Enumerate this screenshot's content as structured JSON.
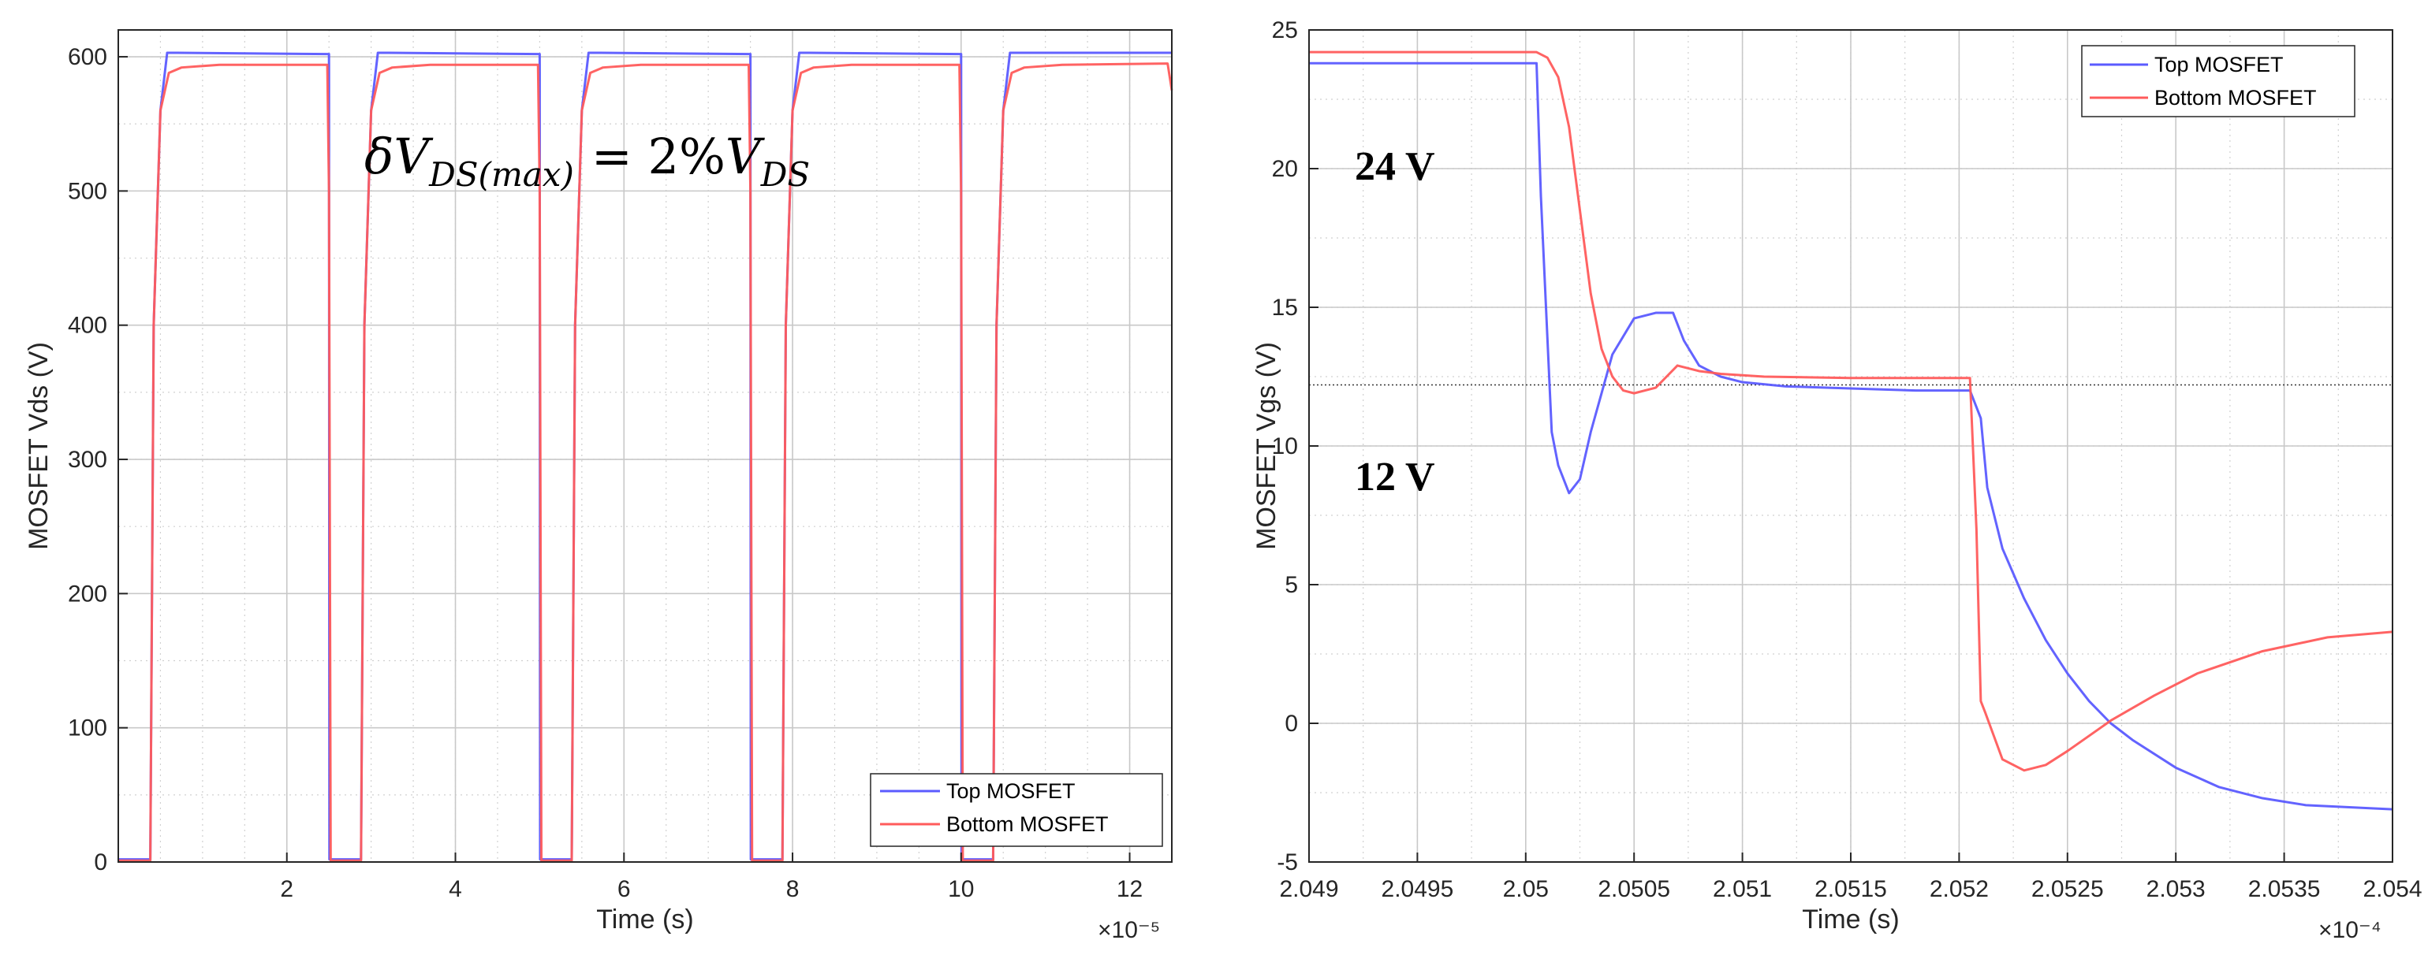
{
  "chart_data": [
    {
      "type": "line",
      "xlabel": "Time (s)",
      "ylabel": "MOSFET Vds (V)",
      "x_exponent": "×10⁻⁵",
      "xlim": [
        0,
        12.5
      ],
      "ylim": [
        0,
        620
      ],
      "xticks": [
        2,
        4,
        6,
        8,
        10,
        12
      ],
      "yticks": [
        0,
        100,
        200,
        300,
        400,
        500,
        600
      ],
      "grid": "major-and-minor",
      "legend": "bottom-right",
      "annotation": "δV_DS(max) = 2% V_DS",
      "annotation_parts": {
        "delta": "δ",
        "v": "V",
        "sub1": "DS(max)",
        "eq": "= 2%",
        "v2": "V",
        "sub2": "DS"
      },
      "series": [
        {
          "name": "Top MOSFET",
          "color": "#5b5bff",
          "x": [
            0,
            0.38,
            0.42,
            0.5,
            0.58,
            0.7,
            2.5,
            2.505,
            2.6,
            2.88,
            2.92,
            3.0,
            3.08,
            3.2,
            5.0,
            5.005,
            5.1,
            5.38,
            5.42,
            5.5,
            5.58,
            5.7,
            7.5,
            7.505,
            7.6,
            7.88,
            7.92,
            8.0,
            8.08,
            8.2,
            10.0,
            10.005,
            10.1,
            10.38,
            10.42,
            10.5,
            10.58,
            10.7,
            12.5
          ],
          "y": [
            2,
            2,
            400,
            560,
            603,
            603,
            602,
            2,
            2,
            2,
            400,
            560,
            603,
            603,
            602,
            2,
            2,
            2,
            400,
            560,
            603,
            603,
            602,
            2,
            2,
            2,
            400,
            560,
            603,
            603,
            602,
            2,
            2,
            2,
            400,
            560,
            603,
            603,
            603
          ]
        },
        {
          "name": "Bottom MOSFET",
          "color": "#ff5b5b",
          "x": [
            0,
            0.38,
            0.42,
            0.5,
            0.6,
            0.75,
            1.2,
            2.48,
            2.5,
            2.52,
            2.88,
            2.92,
            3.0,
            3.1,
            3.25,
            3.7,
            4.98,
            5.0,
            5.02,
            5.38,
            5.42,
            5.5,
            5.6,
            5.75,
            6.2,
            7.48,
            7.5,
            7.52,
            7.88,
            7.92,
            8.0,
            8.1,
            8.25,
            8.7,
            9.98,
            10.0,
            10.02,
            10.38,
            10.42,
            10.5,
            10.6,
            10.75,
            11.2,
            12.45,
            12.5
          ],
          "y": [
            1,
            1,
            400,
            560,
            588,
            592,
            594,
            594,
            500,
            1,
            1,
            400,
            560,
            588,
            592,
            594,
            594,
            500,
            1,
            1,
            400,
            560,
            588,
            592,
            594,
            594,
            500,
            1,
            1,
            400,
            560,
            588,
            592,
            594,
            594,
            500,
            1,
            1,
            400,
            560,
            588,
            592,
            594,
            595,
            575
          ]
        }
      ]
    },
    {
      "type": "line",
      "xlabel": "Time (s)",
      "ylabel": "MOSFET Vgs (V)",
      "x_exponent": "×10⁻⁴",
      "xlim": [
        2.049,
        2.054
      ],
      "ylim": [
        -5,
        25
      ],
      "xticks": [
        2.049,
        2.0495,
        2.05,
        2.0505,
        2.051,
        2.0515,
        2.052,
        2.0525,
        2.053,
        2.0535,
        2.054
      ],
      "xtick_labels": [
        "2.049",
        "2.0495",
        "2.05",
        "2.0505",
        "2.051",
        "2.0515",
        "2.052",
        "2.0525",
        "2.053",
        "2.0535",
        "2.054"
      ],
      "yticks": [
        -5,
        0,
        5,
        10,
        15,
        20,
        25
      ],
      "grid": "major-and-minor",
      "legend": "top-right",
      "reference_line": 12.2,
      "annotations": [
        "24 V",
        "12 V"
      ],
      "series": [
        {
          "name": "Top MOSFET",
          "color": "#5b5bff",
          "x": [
            2.049,
            2.05005,
            2.05007,
            2.05012,
            2.05015,
            2.0502,
            2.05025,
            2.0503,
            2.0504,
            2.0505,
            2.0506,
            2.05068,
            2.05073,
            2.0508,
            2.0509,
            2.051,
            2.0512,
            2.0514,
            2.0516,
            2.0518,
            2.05205,
            2.0521,
            2.05213,
            2.0522,
            2.0523,
            2.0524,
            2.0525,
            2.0526,
            2.0527,
            2.0528,
            2.053,
            2.0532,
            2.0534,
            2.0536,
            2.054
          ],
          "y": [
            23.8,
            23.8,
            19,
            10.5,
            9.3,
            8.3,
            8.8,
            10.5,
            13.3,
            14.6,
            14.8,
            14.8,
            13.8,
            12.9,
            12.5,
            12.3,
            12.15,
            12.1,
            12.05,
            12.0,
            12.0,
            11.0,
            8.5,
            6.3,
            4.5,
            3.0,
            1.8,
            0.8,
            0.0,
            -0.6,
            -1.6,
            -2.3,
            -2.7,
            -2.95,
            -3.1
          ]
        },
        {
          "name": "Bottom MOSFET",
          "color": "#ff5b5b",
          "x": [
            2.049,
            2.05005,
            2.0501,
            2.05015,
            2.0502,
            2.05025,
            2.0503,
            2.05035,
            2.0504,
            2.05045,
            2.0505,
            2.0506,
            2.05065,
            2.0507,
            2.05075,
            2.0508,
            2.0509,
            2.0511,
            2.0515,
            2.05205,
            2.05208,
            2.0521,
            2.05212,
            2.0522,
            2.0523,
            2.0524,
            2.0525,
            2.0527,
            2.0529,
            2.0531,
            2.0534,
            2.0537,
            2.054
          ],
          "y": [
            24.2,
            24.2,
            24.0,
            23.3,
            21.5,
            18.5,
            15.5,
            13.5,
            12.5,
            12.0,
            11.9,
            12.1,
            12.5,
            12.9,
            12.8,
            12.7,
            12.6,
            12.5,
            12.45,
            12.45,
            7.0,
            0.8,
            0.4,
            -1.3,
            -1.7,
            -1.5,
            -1.0,
            0.1,
            1.0,
            1.8,
            2.6,
            3.1,
            3.3
          ]
        }
      ]
    }
  ]
}
